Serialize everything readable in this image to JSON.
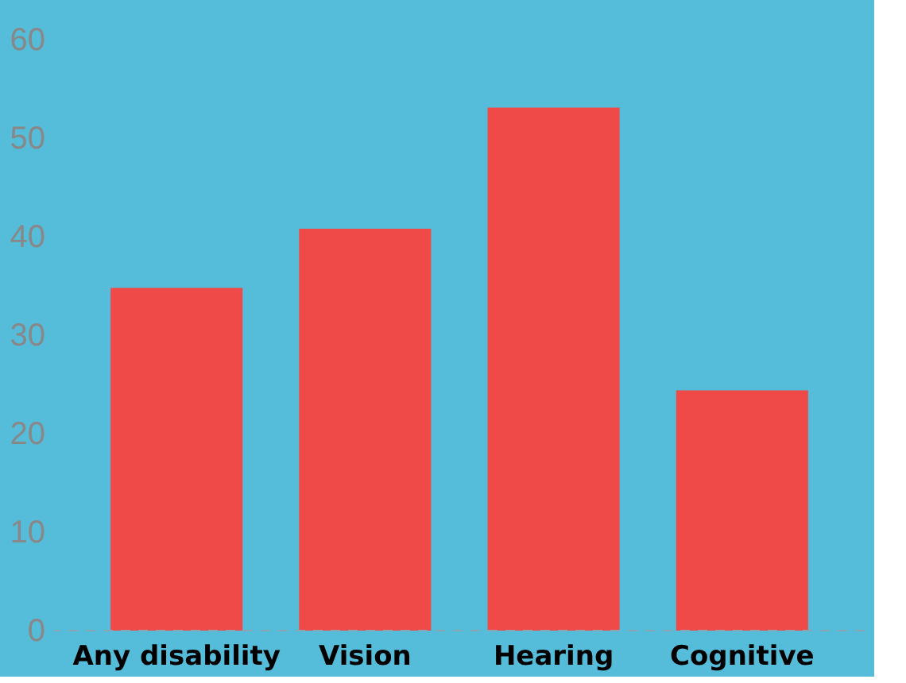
{
  "chart_data": {
    "type": "bar",
    "categories": [
      "Any disability",
      "Vision",
      "Hearing",
      "Cognitive"
    ],
    "values": [
      34.8,
      40.8,
      53.1,
      24.4
    ],
    "color": "#ef4a47",
    "ylim": [
      0,
      60
    ],
    "yticks": [
      0,
      10,
      20,
      30,
      40,
      50,
      60
    ],
    "grid": false
  }
}
